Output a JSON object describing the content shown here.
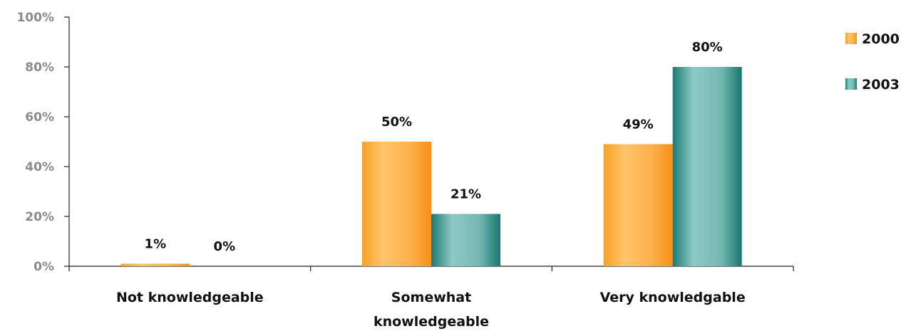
{
  "chart_data": {
    "type": "bar",
    "title": "",
    "xlabel": "",
    "ylabel": "",
    "ylim": [
      0,
      100
    ],
    "yticks": [
      "0%",
      "20%",
      "40%",
      "60%",
      "80%",
      "100%"
    ],
    "categories": [
      [
        "Not knowledgeable"
      ],
      [
        "Somewhat",
        "knowledgeable"
      ],
      [
        "Very knowledgable"
      ]
    ],
    "series": [
      {
        "name": "2000",
        "values": [
          1,
          50,
          49
        ],
        "labels": [
          "1%",
          "50%",
          "49%"
        ],
        "color": "#f7a02a"
      },
      {
        "name": "2003",
        "values": [
          0,
          21,
          80
        ],
        "labels": [
          "0%",
          "21%",
          "80%"
        ],
        "color": "#1f7f7a"
      }
    ],
    "legend": {
      "position": "top-right"
    },
    "grid": false
  }
}
